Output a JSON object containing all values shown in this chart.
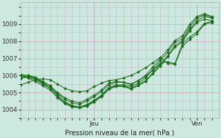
{
  "title": "Pression niveau de la mer( hPa )",
  "bg_color": "#cce8df",
  "grid_color": "#c8b4c8",
  "line_color": "#1a6b1a",
  "ylim": [
    1003.6,
    1010.3
  ],
  "xlim": [
    0,
    27
  ],
  "jeu_x": 10,
  "ven_x": 24,
  "yticks": [
    1004,
    1005,
    1006,
    1007,
    1008,
    1009
  ],
  "xticks": [
    10,
    24
  ],
  "xticklabels": [
    "Jeu",
    "Ven"
  ],
  "series": [
    [
      1005.9,
      1006.0,
      1005.8,
      1005.55,
      1005.3,
      1004.85,
      1004.45,
      1004.25,
      1004.15,
      1004.3,
      1004.55,
      1004.85,
      1005.3,
      1005.45,
      1005.45,
      1005.35,
      1005.55,
      1005.85,
      1006.35,
      1006.85,
      1007.35,
      1007.95,
      1008.15,
      1008.85,
      1009.35,
      1009.55,
      1009.4
    ],
    [
      1006.0,
      1005.9,
      1005.75,
      1005.5,
      1005.25,
      1004.8,
      1004.4,
      1004.2,
      1004.15,
      1004.25,
      1004.5,
      1004.8,
      1005.25,
      1005.4,
      1005.4,
      1005.25,
      1005.45,
      1005.7,
      1006.15,
      1006.65,
      1007.15,
      1007.75,
      1008.05,
      1008.7,
      1009.2,
      1009.45,
      1009.35
    ],
    [
      1006.0,
      1005.85,
      1005.65,
      1005.4,
      1005.15,
      1004.7,
      1004.35,
      1004.15,
      1004.1,
      1004.2,
      1004.45,
      1004.75,
      1005.2,
      1005.35,
      1005.35,
      1005.2,
      1005.4,
      1005.65,
      1006.1,
      1006.55,
      1007.1,
      1007.65,
      1007.95,
      1008.6,
      1009.1,
      1009.3,
      1009.2
    ],
    [
      1006.05,
      1006.0,
      1005.9,
      1005.65,
      1005.4,
      1004.95,
      1004.6,
      1004.4,
      1004.3,
      1004.5,
      1004.75,
      1005.05,
      1005.45,
      1005.6,
      1005.6,
      1005.45,
      1005.7,
      1006.0,
      1006.5,
      1007.0,
      1007.5,
      1008.05,
      1008.3,
      1009.0,
      1009.45,
      1009.6,
      1009.45
    ],
    [
      1005.8,
      1005.95,
      1005.85,
      1005.6,
      1005.4,
      1005.0,
      1004.7,
      1004.5,
      1004.4,
      1004.6,
      1004.85,
      1005.15,
      1005.55,
      1005.65,
      1005.6,
      1005.5,
      1005.7,
      1005.95,
      1006.3,
      1006.7,
      1006.8,
      1006.7,
      1007.85,
      1008.25,
      1008.55,
      1009.05,
      1009.15
    ],
    [
      1005.45,
      1005.6,
      1005.75,
      1005.8,
      1005.75,
      1005.5,
      1005.25,
      1005.1,
      1005.05,
      1005.1,
      1005.35,
      1005.55,
      1005.7,
      1005.75,
      1005.85,
      1006.0,
      1006.2,
      1006.45,
      1006.75,
      1007.05,
      1006.7,
      1006.65,
      1007.7,
      1008.1,
      1008.45,
      1009.0,
      1009.1
    ]
  ]
}
